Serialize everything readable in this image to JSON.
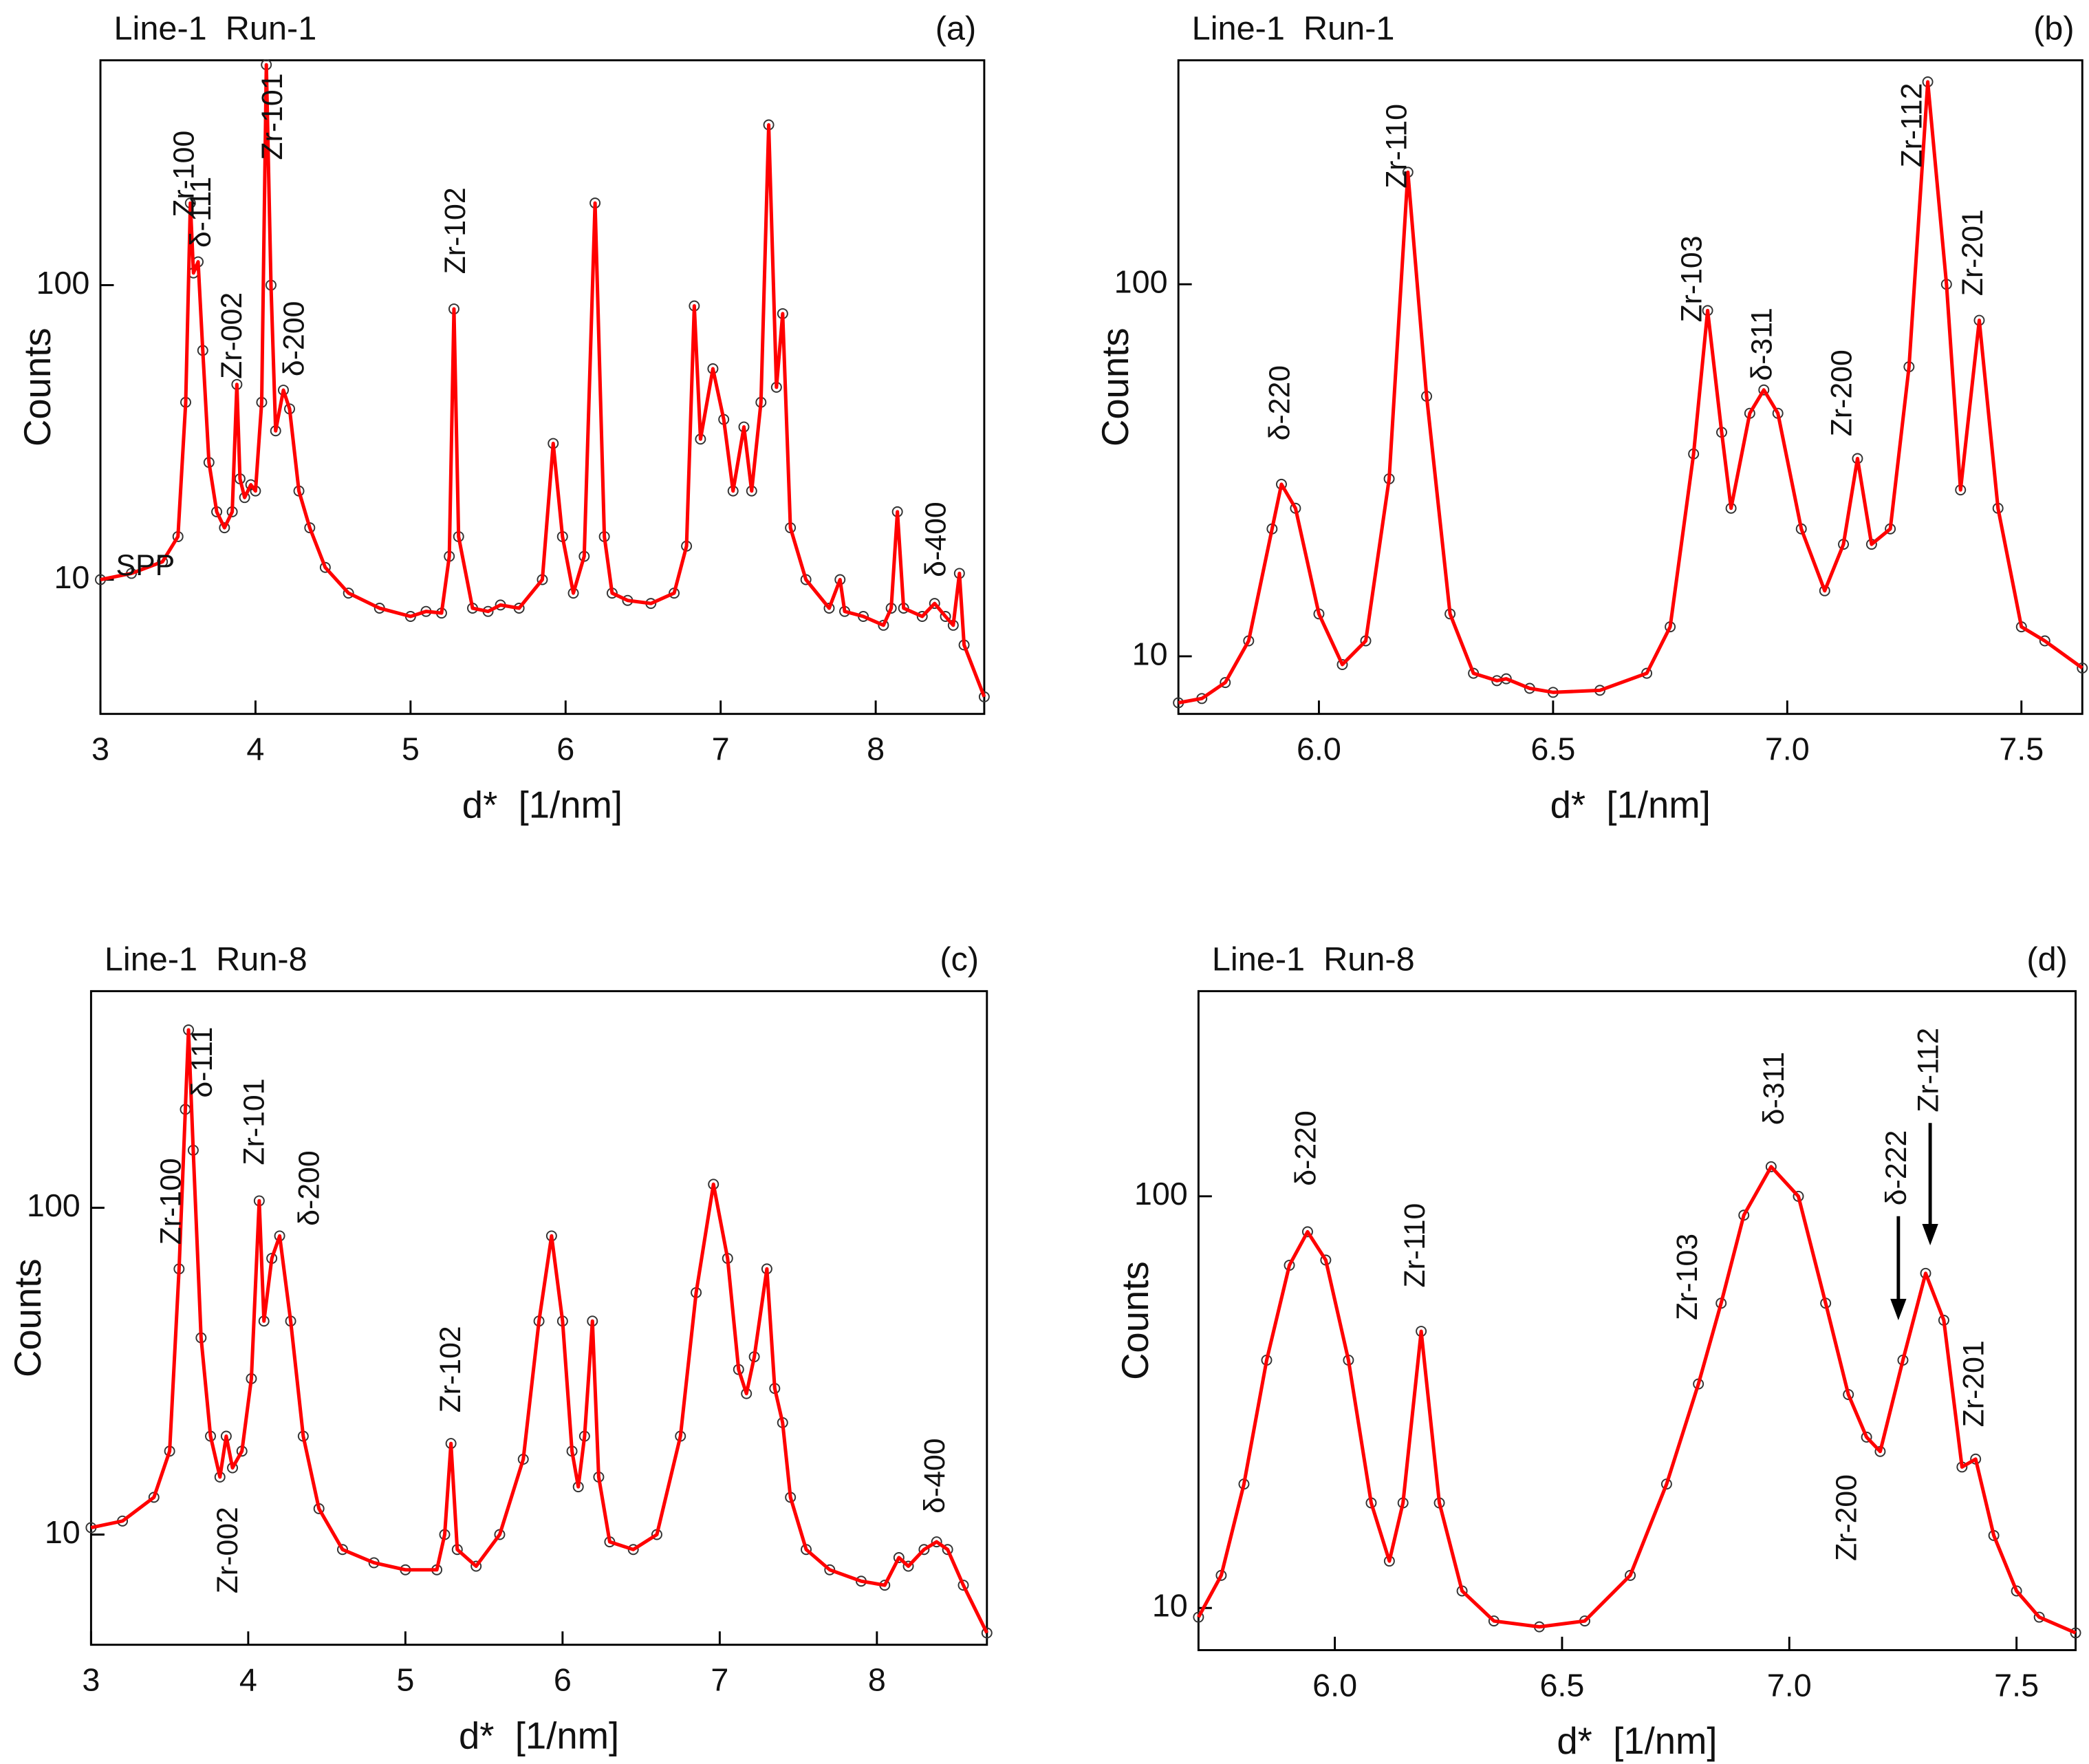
{
  "chart_data": [
    {
      "type": "line",
      "title": "Line-1  Run-1",
      "panel_label": "(a)",
      "xlabel": "d*  [1/nm]",
      "ylabel": "Counts",
      "yscale": "log",
      "xlim": [
        3,
        8.7
      ],
      "ylim": [
        3.5,
        580
      ],
      "xticks": [
        3,
        4,
        5,
        6,
        7,
        8
      ],
      "yticks": [
        10,
        100
      ],
      "x": [
        3.0,
        3.2,
        3.4,
        3.5,
        3.55,
        3.58,
        3.6,
        3.63,
        3.66,
        3.7,
        3.75,
        3.8,
        3.85,
        3.88,
        3.9,
        3.93,
        3.97,
        4.0,
        4.04,
        4.07,
        4.1,
        4.13,
        4.18,
        4.22,
        4.28,
        4.35,
        4.45,
        4.6,
        4.8,
        5.0,
        5.1,
        5.2,
        5.25,
        5.28,
        5.31,
        5.4,
        5.5,
        5.58,
        5.7,
        5.85,
        5.92,
        5.98,
        6.05,
        6.12,
        6.19,
        6.25,
        6.3,
        6.4,
        6.55,
        6.7,
        6.78,
        6.83,
        6.87,
        6.95,
        7.02,
        7.08,
        7.15,
        7.2,
        7.26,
        7.31,
        7.36,
        7.4,
        7.45,
        7.55,
        7.7,
        7.77,
        7.8,
        7.92,
        8.05,
        8.1,
        8.14,
        8.18,
        8.3,
        8.38,
        8.45,
        8.5,
        8.54,
        8.57,
        8.7
      ],
      "series": [
        {
          "color": "#ff0000",
          "marker_color": "#333333",
          "values": [
            10,
            10.5,
            11.5,
            14,
            40,
            190,
            110,
            120,
            60,
            25,
            17,
            15,
            17,
            46,
            22,
            19,
            21,
            20,
            40,
            560,
            100,
            32,
            44,
            38,
            20,
            15,
            11,
            9,
            8,
            7.5,
            7.8,
            7.7,
            12,
            83,
            14,
            8,
            7.8,
            8.2,
            8,
            10,
            29,
            14,
            9,
            12,
            190,
            14,
            9,
            8.5,
            8.3,
            9,
            13,
            85,
            30,
            52,
            35,
            20,
            33,
            20,
            40,
            350,
            45,
            80,
            15,
            10,
            8,
            10,
            7.8,
            7.5,
            7,
            8,
            17,
            8,
            7.5,
            8.3,
            7.5,
            7,
            10.5,
            6,
            4
          ]
        }
      ],
      "annotations": [
        {
          "text": "SPP",
          "x": 3.1,
          "y": 11,
          "rotation": 0
        },
        {
          "text": "Zr-100",
          "x": 3.55,
          "y": 170
        },
        {
          "text": "δ-111",
          "x": 3.66,
          "y": 134
        },
        {
          "text": "Zr-002",
          "x": 3.86,
          "y": 48
        },
        {
          "text": "Zr-101",
          "x": 4.12,
          "y": 266
        },
        {
          "text": "δ-200",
          "x": 4.26,
          "y": 49
        },
        {
          "text": "Zr-102",
          "x": 5.3,
          "y": 109
        },
        {
          "text": "δ-400",
          "x": 8.4,
          "y": 10.2
        }
      ]
    },
    {
      "type": "line",
      "title": "Line-1  Run-1",
      "panel_label": "(b)",
      "xlabel": "d*  [1/nm]",
      "ylabel": "Counts",
      "yscale": "log",
      "xlim": [
        5.7,
        7.63
      ],
      "ylim": [
        7,
        400
      ],
      "xticks": [
        {
          "value": 6,
          "label": "6.0"
        },
        6.5,
        {
          "value": 7,
          "label": "7.0"
        },
        7.5
      ],
      "yticks": [
        10,
        100
      ],
      "x": [
        5.7,
        5.75,
        5.8,
        5.85,
        5.9,
        5.92,
        5.95,
        6.0,
        6.05,
        6.1,
        6.15,
        6.19,
        6.23,
        6.28,
        6.33,
        6.38,
        6.4,
        6.45,
        6.5,
        6.6,
        6.7,
        6.75,
        6.8,
        6.83,
        6.86,
        6.88,
        6.92,
        6.95,
        6.98,
        7.03,
        7.08,
        7.12,
        7.15,
        7.18,
        7.22,
        7.26,
        7.3,
        7.34,
        7.37,
        7.41,
        7.45,
        7.5,
        7.55,
        7.63
      ],
      "series": [
        {
          "color": "#ff0000",
          "marker_color": "#333333",
          "values": [
            7.5,
            7.7,
            8.5,
            11,
            22,
            29,
            25,
            13,
            9.5,
            11,
            30,
            200,
            50,
            13,
            9,
            8.6,
            8.7,
            8.2,
            8,
            8.1,
            9,
            12,
            35,
            85,
            40,
            25,
            45,
            52,
            45,
            22,
            15,
            20,
            34,
            20,
            22,
            60,
            350,
            100,
            28,
            80,
            25,
            12,
            11,
            9.3
          ]
        }
      ],
      "annotations": [
        {
          "text": "δ-220",
          "x": 5.92,
          "y": 38
        },
        {
          "text": "Zr-110",
          "x": 6.17,
          "y": 181
        },
        {
          "text": "Zr-103",
          "x": 6.8,
          "y": 79
        },
        {
          "text": "δ-311",
          "x": 6.95,
          "y": 55
        },
        {
          "text": "Zr-200",
          "x": 7.12,
          "y": 39
        },
        {
          "text": "Zr-112",
          "x": 7.27,
          "y": 206
        },
        {
          "text": "Zr-201",
          "x": 7.4,
          "y": 93
        }
      ]
    },
    {
      "type": "line",
      "title": "Line-1  Run-8",
      "panel_label": "(c)",
      "xlabel": "d*  [1/nm]",
      "ylabel": "Counts",
      "yscale": "log",
      "xlim": [
        3,
        8.7
      ],
      "ylim": [
        4.6,
        460
      ],
      "xticks": [
        3,
        4,
        5,
        6,
        7,
        8
      ],
      "yticks": [
        10,
        100
      ],
      "x": [
        3.0,
        3.2,
        3.4,
        3.5,
        3.56,
        3.6,
        3.62,
        3.65,
        3.7,
        3.76,
        3.82,
        3.86,
        3.9,
        3.96,
        4.02,
        4.07,
        4.1,
        4.15,
        4.2,
        4.27,
        4.35,
        4.45,
        4.6,
        4.8,
        5.0,
        5.2,
        5.25,
        5.29,
        5.33,
        5.45,
        5.6,
        5.75,
        5.85,
        5.93,
        6.0,
        6.06,
        6.1,
        6.14,
        6.19,
        6.23,
        6.3,
        6.45,
        6.6,
        6.75,
        6.85,
        6.96,
        7.05,
        7.12,
        7.17,
        7.22,
        7.3,
        7.35,
        7.4,
        7.45,
        7.55,
        7.7,
        7.9,
        8.05,
        8.14,
        8.2,
        8.3,
        8.38,
        8.45,
        8.55,
        8.7
      ],
      "series": [
        {
          "color": "#ff0000",
          "marker_color": "#333333",
          "values": [
            10.5,
            11,
            13,
            18,
            65,
            200,
            350,
            150,
            40,
            20,
            15,
            20,
            16,
            18,
            30,
            105,
            45,
            70,
            82,
            45,
            20,
            12,
            9,
            8.2,
            7.8,
            7.8,
            10,
            19,
            9,
            8,
            10,
            17,
            45,
            82,
            45,
            18,
            14,
            20,
            45,
            15,
            9.5,
            9,
            10,
            20,
            55,
            118,
            70,
            32,
            27,
            35,
            65,
            28,
            22,
            13,
            9,
            7.8,
            7.2,
            7,
            8.5,
            8,
            9,
            9.5,
            9,
            7,
            5
          ]
        }
      ],
      "annotations": [
        {
          "text": "Zr-100",
          "x": 3.52,
          "y": 77
        },
        {
          "text": "δ-111",
          "x": 3.72,
          "y": 217
        },
        {
          "text": "Zr-101",
          "x": 4.05,
          "y": 135
        },
        {
          "text": "δ-200",
          "x": 4.4,
          "y": 88
        },
        {
          "text": "Zr-002",
          "x": 3.88,
          "y": 6.6
        },
        {
          "text": "Zr-102",
          "x": 5.3,
          "y": 23.6
        },
        {
          "text": "δ-400",
          "x": 8.38,
          "y": 11.6
        }
      ]
    },
    {
      "type": "line",
      "title": "Line-1  Run-8",
      "panel_label": "(d)",
      "xlabel": "d*  [1/nm]",
      "ylabel": "Counts",
      "yscale": "log",
      "xlim": [
        5.7,
        7.63
      ],
      "ylim": [
        7.9,
        315
      ],
      "xticks": [
        {
          "value": 6,
          "label": "6.0"
        },
        6.5,
        {
          "value": 7,
          "label": "7.0"
        },
        7.5
      ],
      "yticks": [
        10,
        100
      ],
      "x": [
        5.7,
        5.75,
        5.8,
        5.85,
        5.9,
        5.94,
        5.98,
        6.03,
        6.08,
        6.12,
        6.15,
        6.19,
        6.23,
        6.28,
        6.35,
        6.45,
        6.55,
        6.65,
        6.73,
        6.8,
        6.85,
        6.9,
        6.96,
        7.02,
        7.08,
        7.13,
        7.17,
        7.2,
        7.25,
        7.3,
        7.34,
        7.38,
        7.41,
        7.45,
        7.5,
        7.55,
        7.63
      ],
      "series": [
        {
          "color": "#ff0000",
          "marker_color": "#333333",
          "values": [
            9.5,
            12,
            20,
            40,
            68,
            82,
            70,
            40,
            18,
            13,
            18,
            47,
            18,
            11,
            9.3,
            9,
            9.3,
            12,
            20,
            35,
            55,
            90,
            118,
            100,
            55,
            33,
            26,
            24,
            40,
            65,
            50,
            22,
            23,
            15,
            11,
            9.5,
            8.7
          ]
        }
      ],
      "annotations": [
        {
          "text": "δ-220",
          "x": 5.94,
          "y": 106
        },
        {
          "text": "Zr-110",
          "x": 6.18,
          "y": 60
        },
        {
          "text": "Zr-103",
          "x": 6.78,
          "y": 50
        },
        {
          "text": "δ-311",
          "x": 6.97,
          "y": 149
        },
        {
          "text": "δ-222",
          "x": 7.24,
          "y": 95,
          "arrow_to": 50
        },
        {
          "text": "Zr-112",
          "x": 7.31,
          "y": 160,
          "arrow_to": 76
        },
        {
          "text": "Zr-200",
          "x": 7.13,
          "y": 13
        },
        {
          "text": "Zr-201",
          "x": 7.41,
          "y": 27.5
        }
      ]
    }
  ]
}
